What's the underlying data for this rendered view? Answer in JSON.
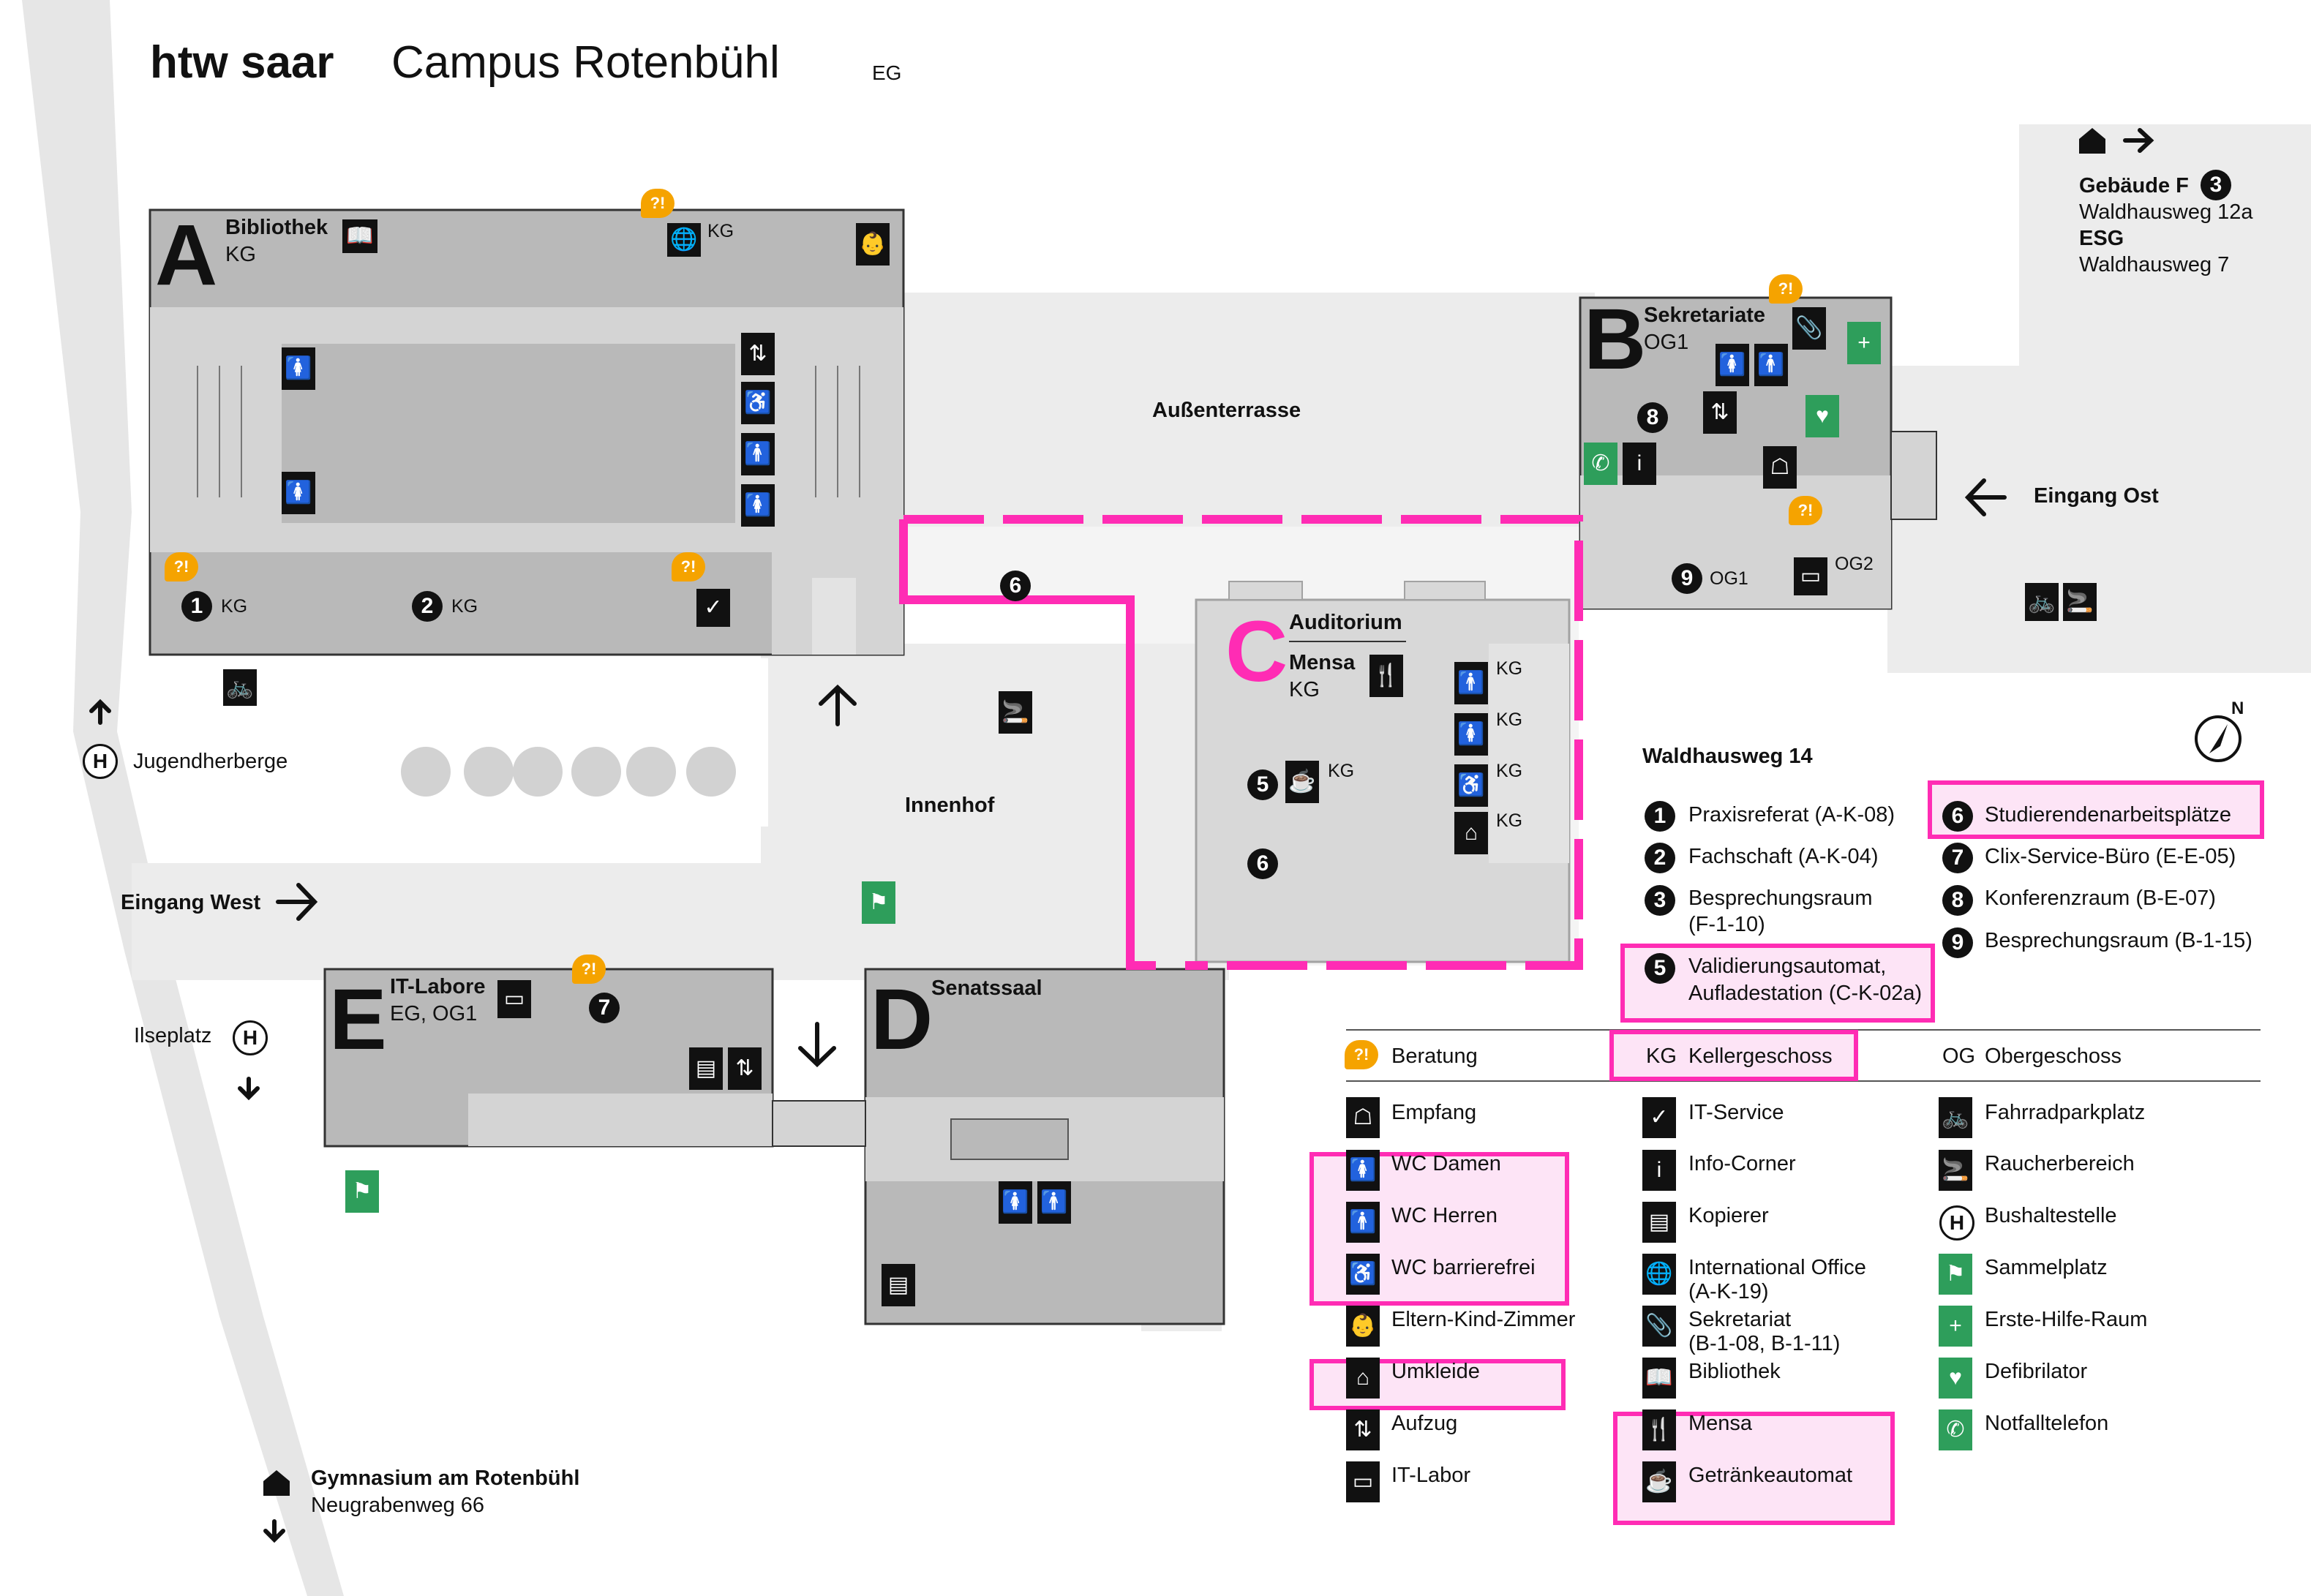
{
  "header": {
    "brand": "htw saar",
    "campus": "Campus Rotenbühl",
    "floor": "EG"
  },
  "compass": "N",
  "buildings": {
    "A": {
      "letter": "A",
      "name": "Bibliothek",
      "sub": "KG"
    },
    "B": {
      "letter": "B",
      "name": "Sekretariate",
      "sub": "OG1"
    },
    "C": {
      "letter": "C",
      "name": "Auditorium",
      "name2": "Mensa",
      "sub": "KG"
    },
    "D": {
      "letter": "D",
      "name": "Senatssaal"
    },
    "E": {
      "letter": "E",
      "name": "IT-Labore",
      "sub": "EG, OG1"
    }
  },
  "areas": {
    "terrace": "Außenterrasse",
    "courtyard": "Innenhof",
    "entrance_east": "Eingang Ost",
    "entrance_west": "Eingang West"
  },
  "offsite": {
    "gebaeude_f": "Gebäude F",
    "gebaeude_f_addr": "Waldhausweg 12a",
    "esg": "ESG",
    "esg_addr": "Waldhausweg 7",
    "jugendherberge": "Jugendherberge",
    "ilseplatz": "Ilseplatz",
    "gymnasium": "Gymnasium am Rotenbühl",
    "gymnasium_addr": "Neugrabenweg 66"
  },
  "map_marks": {
    "kg": "KG",
    "og1": "OG1",
    "og2": "OG2",
    "q": "?!",
    "bus": "H"
  },
  "numbers": [
    "1",
    "2",
    "3",
    "5",
    "6",
    "7",
    "8",
    "9"
  ],
  "legend": {
    "address": "Waldhausweg 14",
    "rooms_left": [
      {
        "num": "1",
        "text": "Praxisreferat (A-K-08)"
      },
      {
        "num": "2",
        "text": "Fachschaft (A-K-04)"
      },
      {
        "num": "3",
        "text": "Besprechungsraum",
        "text2": "(F-1-10)"
      },
      {
        "num": "5",
        "text": "Validierungsautomat,",
        "text2": "Aufladestation (C-K-02a)"
      }
    ],
    "rooms_right": [
      {
        "num": "6",
        "text": "Studierendenarbeitsplätze"
      },
      {
        "num": "7",
        "text": "Clix-Service-Büro (E-E-05)"
      },
      {
        "num": "8",
        "text": "Konferenzraum (B-E-07)"
      },
      {
        "num": "9",
        "text": "Besprechungsraum (B-1-15)"
      }
    ],
    "beratung": "Beratung",
    "kg": "KG",
    "kg_text": "Kellergeschoss",
    "og": "OG",
    "og_text": "Obergeschoss",
    "col1": [
      "Empfang",
      "WC Damen",
      "WC Herren",
      "WC barrierefrei",
      "Eltern-Kind-Zimmer",
      "Umkleide",
      "Aufzug",
      "IT-Labor"
    ],
    "col2": [
      "IT-Service",
      "Info-Corner",
      "Kopierer",
      "International Office",
      "(A-K-19)",
      "Sekretariat",
      "(B-1-08, B-1-11)",
      "Bibliothek",
      "Mensa",
      "Getränkeautomat"
    ],
    "col3": [
      "Fahrradparkplatz",
      "Raucherbereich",
      "Bushaltestelle",
      "Sammelplatz",
      "Erste-Hilfe-Raum",
      "Defibrilator",
      "Notfalltelefon"
    ]
  },
  "colors": {
    "highlight": "#ff2cb4",
    "highlight_fill": "#fde4f6",
    "building": "#b9b9b9",
    "building_light": "#d4d4d4",
    "path": "#ececec",
    "green": "#2e9e5b",
    "orange": "#f5a300"
  }
}
